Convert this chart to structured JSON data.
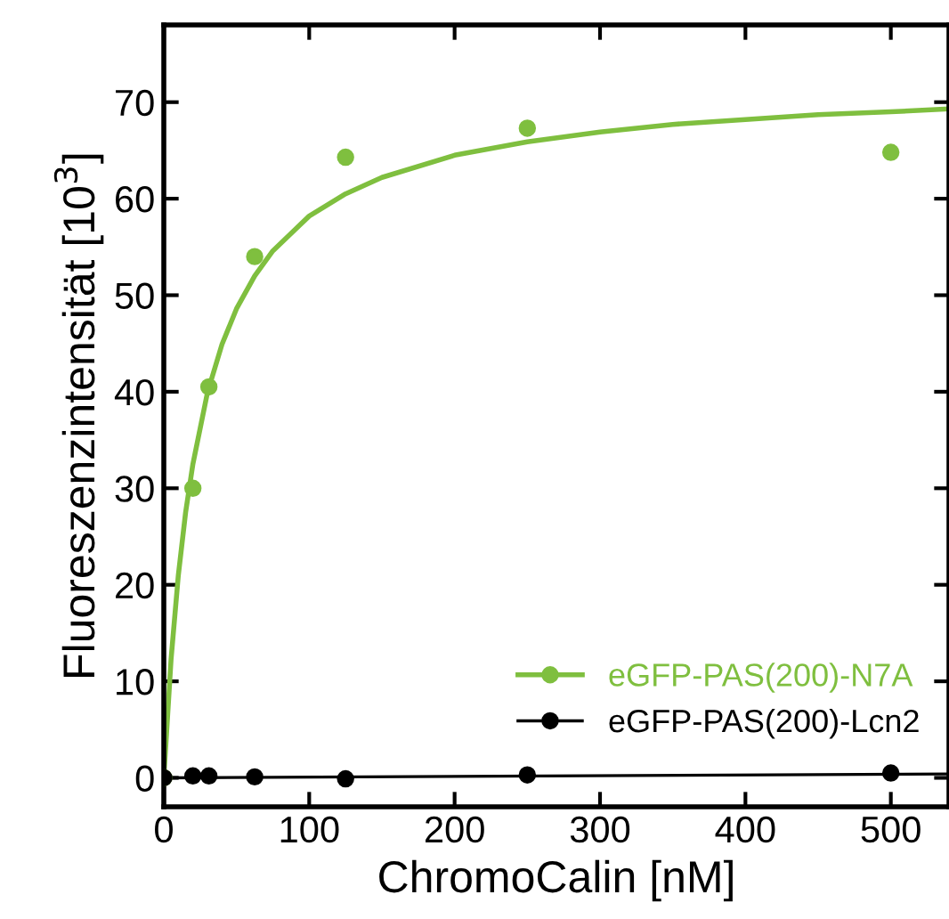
{
  "chart_data": {
    "type": "scatter",
    "xlabel": "ChromoCalin [nM]",
    "ylabel": "Fluoreszenzintensität [10$^{3}$]",
    "xlim": [
      0,
      540
    ],
    "xticks": [
      0,
      100,
      200,
      300,
      400,
      500
    ],
    "ylim": [
      -3,
      78
    ],
    "yticks": [
      0,
      10,
      20,
      30,
      40,
      50,
      60,
      70
    ],
    "grid": false,
    "legend": "bottom right",
    "marker": "circle",
    "series": [
      {
        "name": "eGFP-PAS(200)-N7A",
        "color": "#7fbf3f",
        "x": [
          0,
          20,
          31,
          62.5,
          125,
          250,
          500
        ],
        "values": [
          0,
          30,
          40.5,
          54,
          64.3,
          67.3,
          64.8
        ]
      },
      {
        "name": "eGFP-PAS(200)-Lcn2",
        "color": "#000000",
        "x": [
          0,
          20,
          31,
          62.5,
          125,
          250,
          500
        ],
        "values": [
          0,
          0.2,
          0.2,
          0.1,
          -0.1,
          0.3,
          0.5
        ]
      },
      {
        "type": "line",
        "marker": "none",
        "color": "#7fbf3f",
        "x": [
          0,
          5,
          10,
          15,
          20,
          30,
          40,
          50,
          62.5,
          75,
          100,
          125,
          150,
          200,
          250,
          300,
          350,
          400,
          450,
          500,
          540
        ],
        "values": [
          0,
          12.3,
          21,
          27.5,
          32.5,
          39.9,
          44.9,
          48.6,
          52,
          54.6,
          58.2,
          60.5,
          62.2,
          64.5,
          65.9,
          66.9,
          67.7,
          68.2,
          68.7,
          69,
          69.3
        ]
      },
      {
        "type": "line",
        "marker": "none",
        "color": "#000000",
        "x": [
          0,
          540
        ],
        "values": [
          0,
          0.4
        ]
      }
    ]
  }
}
